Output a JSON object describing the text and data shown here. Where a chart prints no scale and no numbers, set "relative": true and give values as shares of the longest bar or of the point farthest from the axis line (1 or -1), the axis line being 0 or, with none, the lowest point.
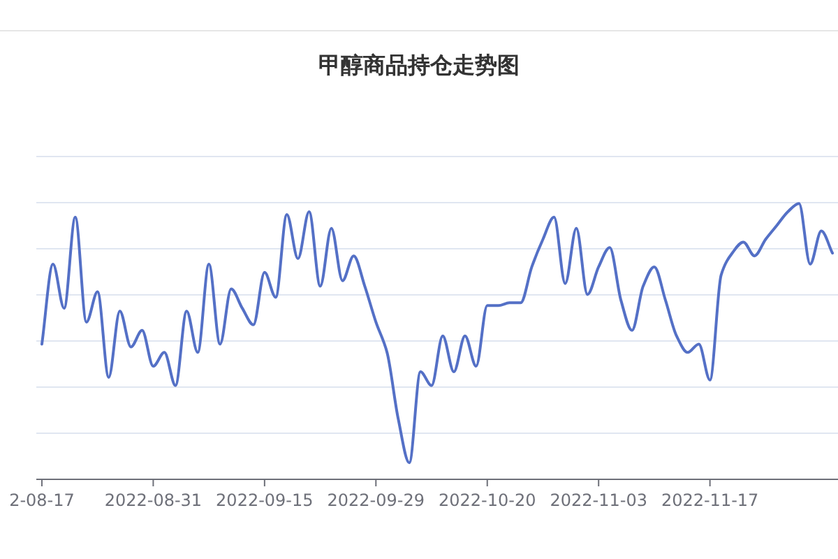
{
  "chart_data": {
    "type": "line",
    "title": "甲醇商品持仓走势图",
    "relative": true,
    "grid": "y",
    "marker": "none",
    "line_style": "solid",
    "categories": [
      "2-08-17",
      null,
      null,
      null,
      null,
      null,
      null,
      null,
      null,
      null,
      "2022-08-31",
      null,
      null,
      null,
      null,
      null,
      null,
      null,
      null,
      null,
      "2022-09-15",
      null,
      null,
      null,
      null,
      null,
      null,
      null,
      null,
      null,
      "2022-09-29",
      null,
      null,
      null,
      null,
      null,
      null,
      null,
      null,
      null,
      "2022-10-20",
      null,
      null,
      null,
      null,
      null,
      null,
      null,
      null,
      null,
      "2022-11-03",
      null,
      null,
      null,
      null,
      null,
      null,
      null,
      null,
      null,
      "2022-11-17",
      null,
      null,
      null,
      null,
      null,
      null,
      null,
      null,
      null,
      null,
      null
    ],
    "series": [
      {
        "color": "#5470c6",
        "values": [
          0.49,
          0.78,
          0.62,
          0.95,
          0.57,
          0.68,
          0.37,
          0.61,
          0.48,
          0.54,
          0.41,
          0.46,
          0.34,
          0.61,
          0.46,
          0.78,
          0.49,
          0.69,
          0.62,
          0.56,
          0.75,
          0.66,
          0.96,
          0.8,
          0.97,
          0.7,
          0.91,
          0.72,
          0.81,
          0.7,
          0.57,
          0.46,
          0.22,
          0.06,
          0.39,
          0.34,
          0.52,
          0.39,
          0.52,
          0.41,
          0.63,
          0.63,
          0.64,
          0.64,
          0.77,
          0.87,
          0.95,
          0.71,
          0.91,
          0.67,
          0.77,
          0.84,
          0.65,
          0.54,
          0.7,
          0.77,
          0.65,
          0.52,
          0.46,
          0.49,
          0.36,
          0.74,
          0.82,
          0.86,
          0.81,
          0.87,
          0.92,
          0.97,
          1.0,
          0.78,
          0.9,
          0.82
        ]
      }
    ]
  }
}
